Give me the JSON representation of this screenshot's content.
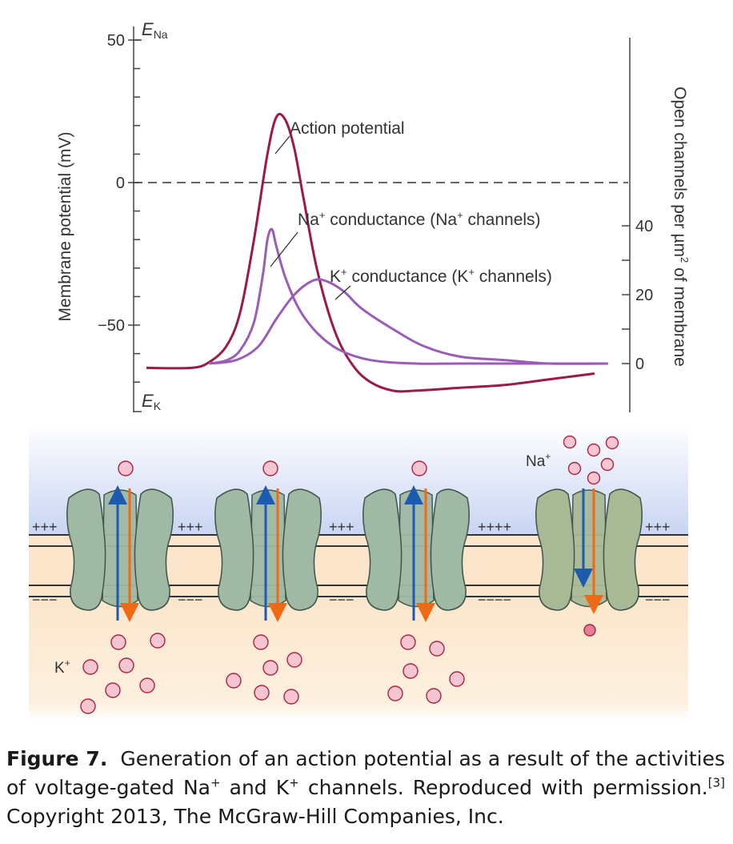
{
  "figure": {
    "graph": {
      "chart_data": {
        "type": "line",
        "x_range": [
          0,
          1
        ],
        "left_axis": {
          "label": "Membrane potential (mV)",
          "ticks": [
            50,
            0,
            -50
          ],
          "tick_labels": [
            "50",
            "0",
            "−50"
          ],
          "ylim": [
            -75,
            50
          ],
          "equilibrium_labels": {
            "top": {
              "letter": "E",
              "sub": "Na"
            },
            "bottom": {
              "letter": "E",
              "sub": "K"
            }
          }
        },
        "right_axis": {
          "label_pre": "Open channels per µm",
          "label_sup": "2",
          "label_post": " of membrane",
          "ticks": [
            40,
            20,
            0
          ],
          "tick_labels": [
            "40",
            "20",
            "0"
          ]
        },
        "zero_line_mV": 0,
        "series": [
          {
            "name": "Action potential",
            "color": "#9b1b42",
            "axis": "left",
            "x": [
              0.0,
              0.1,
              0.14,
              0.18,
              0.21,
              0.24,
              0.27,
              0.29,
              0.31,
              0.33,
              0.35,
              0.38,
              0.42,
              0.46,
              0.5,
              0.55,
              0.6,
              0.7,
              0.8,
              0.9,
              1.0
            ],
            "y": [
              -65,
              -65,
              -63,
              -57,
              -45,
              -20,
              10,
              23,
              22,
              12,
              -5,
              -30,
              -52,
              -64,
              -70,
              -73,
              -73,
              -72,
              -71,
              -69,
              -67
            ]
          },
          {
            "name_pre": "Na",
            "name_sup": "+",
            "name_post": " conductance (Na",
            "name_sup2": "+",
            "name_post2": " channels)",
            "color": "#9b5cb8",
            "axis": "right",
            "x": [
              0.14,
              0.18,
              0.21,
              0.24,
              0.26,
              0.27,
              0.28,
              0.29,
              0.31,
              0.34,
              0.38,
              0.43,
              0.5,
              0.6,
              0.7,
              0.85,
              1.03
            ],
            "y": [
              0,
              1,
              4,
              12,
              26,
              36,
              39,
              34,
              25,
              16,
              9,
              4,
              1,
              0,
              0,
              0,
              0
            ]
          },
          {
            "name_pre": "K",
            "name_sup": "+",
            "name_post": " conductance (K",
            "name_sup2": "+",
            "name_post2": " channels)",
            "color": "#9b5cb8",
            "axis": "right",
            "x": [
              0.14,
              0.2,
              0.25,
              0.29,
              0.33,
              0.37,
              0.4,
              0.44,
              0.48,
              0.55,
              0.62,
              0.7,
              0.8,
              0.9,
              1.03
            ],
            "y": [
              0,
              1,
              5,
              13,
              20,
              24,
              24,
              21,
              16,
              10,
              5,
              2,
              1,
              0,
              0
            ]
          }
        ]
      }
    },
    "membrane": {
      "colors": {
        "outside": "#c8d4f2",
        "inside": "#fbe6cc",
        "channel_fill": "#9fb9a4",
        "channel_fill_last": "#a8b996",
        "channel_stroke": "#3f5448",
        "blue_arrow": "#1d5bb0",
        "orange_arrow": "#ee6a16",
        "ion_fill": "#f5c6d1",
        "ion_stroke": "#a8243f",
        "ion_na_fill": "#e87d97"
      },
      "outside_charges": [
        "+++",
        "+++",
        "+++",
        "++++",
        "+++"
      ],
      "inside_charges": [
        "−−−",
        "−−−",
        "−−−",
        "−−−−",
        "−−−"
      ],
      "ion_labels": {
        "na": {
          "base": "Na",
          "sup": "+"
        },
        "k": {
          "base": "K",
          "sup": "+"
        }
      }
    }
  },
  "caption": {
    "label": "Figure 7.",
    "text": "Generation of an action potential as a result of the activities of voltage-gated Na",
    "sup1": "+",
    "text2": " and K",
    "sup2": "+",
    "text3": " channels. Reproduced with permission.",
    "ref": "[3]",
    "text4": " Copyright 2013, The McGraw-Hill Companies, Inc."
  }
}
